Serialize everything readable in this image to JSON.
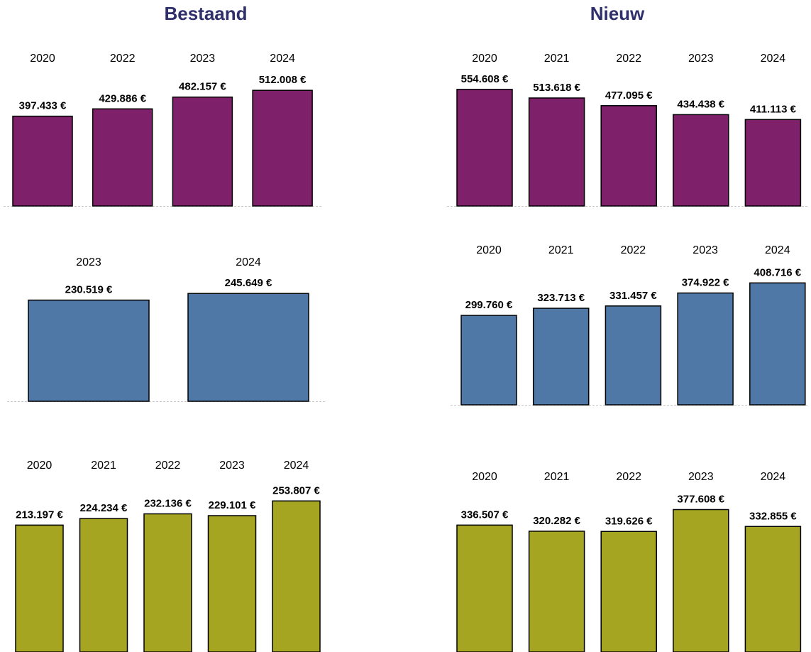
{
  "headings": {
    "left": "Bestaand",
    "right": "Nieuw"
  },
  "colors": {
    "heading": "#2e2f6b",
    "purple": "#7f206a",
    "blue": "#4f78a6",
    "olive": "#a5a522"
  },
  "chart_data": [
    {
      "type": "bar",
      "group": "Bestaand",
      "color": "purple",
      "categories": [
        "2020",
        "2022",
        "2023",
        "2024"
      ],
      "values": [
        397433,
        429886,
        482157,
        512008
      ],
      "labels": [
        "397.433 €",
        "429.886 €",
        "482.157 €",
        "512.008 €"
      ]
    },
    {
      "type": "bar",
      "group": "Nieuw",
      "color": "purple",
      "categories": [
        "2020",
        "2021",
        "2022",
        "2023",
        "2024"
      ],
      "values": [
        554608,
        513618,
        477095,
        434438,
        411113
      ],
      "labels": [
        "554.608 €",
        "513.618 €",
        "477.095 €",
        "434.438 €",
        "411.113 €"
      ]
    },
    {
      "type": "bar",
      "group": "Bestaand",
      "color": "blue",
      "categories": [
        "2023",
        "2024"
      ],
      "values": [
        230519,
        245649
      ],
      "labels": [
        "230.519 €",
        "245.649 €"
      ]
    },
    {
      "type": "bar",
      "group": "Nieuw",
      "color": "blue",
      "categories": [
        "2020",
        "2021",
        "2022",
        "2023",
        "2024"
      ],
      "values": [
        299760,
        323713,
        331457,
        374922,
        408716
      ],
      "labels": [
        "299.760 €",
        "323.713 €",
        "331.457 €",
        "374.922 €",
        "408.716 €"
      ]
    },
    {
      "type": "bar",
      "group": "Bestaand",
      "color": "olive",
      "categories": [
        "2020",
        "2021",
        "2022",
        "2023",
        "2024"
      ],
      "values": [
        213197,
        224234,
        232136,
        229101,
        253807
      ],
      "labels": [
        "213.197 €",
        "224.234 €",
        "232.136 €",
        "229.101 €",
        "253.807 €"
      ]
    },
    {
      "type": "bar",
      "group": "Nieuw",
      "color": "olive",
      "categories": [
        "2020",
        "2021",
        "2022",
        "2023",
        "2024"
      ],
      "values": [
        336507,
        320282,
        319626,
        377608,
        332855
      ],
      "labels": [
        "336.507 €",
        "320.282 €",
        "319.626 €",
        "377.608 €",
        "332.855 €"
      ]
    }
  ]
}
